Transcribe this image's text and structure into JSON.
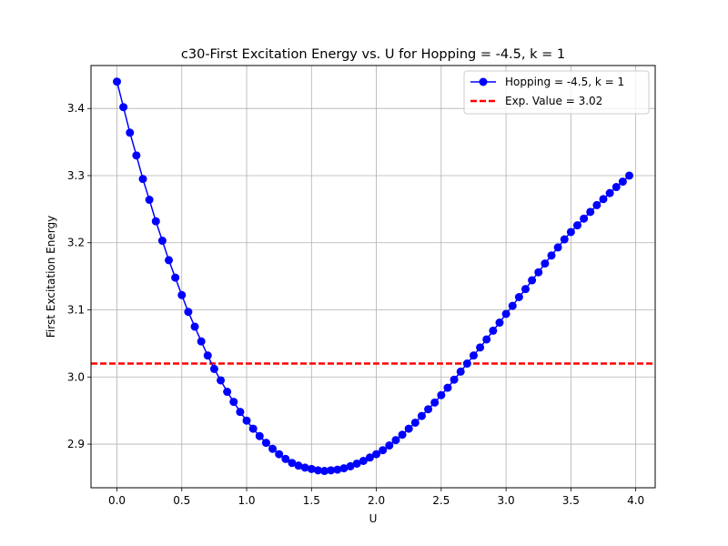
{
  "chart_data": {
    "type": "line",
    "title": "c30-First Excitation Energy vs. U for Hopping = -4.5, k = 1",
    "xlabel": "U",
    "ylabel": "First Excitation Energy",
    "xlim": [
      -0.2,
      4.15
    ],
    "ylim": [
      2.835,
      3.464
    ],
    "xticks": [
      0.0,
      0.5,
      1.0,
      1.5,
      2.0,
      2.5,
      3.0,
      3.5,
      4.0
    ],
    "xtick_labels": [
      "0.0",
      "0.5",
      "1.0",
      "1.5",
      "2.0",
      "2.5",
      "3.0",
      "3.5",
      "4.0"
    ],
    "yticks": [
      2.9,
      3.0,
      3.1,
      3.2,
      3.3,
      3.4
    ],
    "ytick_labels": [
      "2.9",
      "3.0",
      "3.1",
      "3.2",
      "3.3",
      "3.4"
    ],
    "grid": true,
    "legend_position": "top-right",
    "series": [
      {
        "name": "Hopping = -4.5, k = 1",
        "color": "#0000ff",
        "marker": "circle",
        "x": [
          0.0,
          0.05,
          0.1,
          0.15,
          0.2,
          0.25,
          0.3,
          0.35,
          0.4,
          0.45,
          0.5,
          0.55,
          0.6,
          0.65,
          0.7,
          0.75,
          0.8,
          0.85,
          0.9,
          0.95,
          1.0,
          1.05,
          1.1,
          1.15,
          1.2,
          1.25,
          1.3,
          1.35,
          1.4,
          1.45,
          1.5,
          1.55,
          1.6,
          1.65,
          1.7,
          1.75,
          1.8,
          1.85,
          1.9,
          1.95,
          2.0,
          2.05,
          2.1,
          2.15,
          2.2,
          2.25,
          2.3,
          2.35,
          2.4,
          2.45,
          2.5,
          2.55,
          2.6,
          2.65,
          2.7,
          2.75,
          2.8,
          2.85,
          2.9,
          2.95,
          3.0,
          3.05,
          3.1,
          3.15,
          3.2,
          3.25,
          3.3,
          3.35,
          3.4,
          3.45,
          3.5,
          3.55,
          3.6,
          3.65,
          3.7,
          3.75,
          3.8,
          3.85,
          3.9,
          3.95
        ],
        "y": [
          3.44,
          3.402,
          3.364,
          3.33,
          3.295,
          3.264,
          3.232,
          3.203,
          3.174,
          3.148,
          3.122,
          3.097,
          3.075,
          3.053,
          3.032,
          3.012,
          2.995,
          2.978,
          2.963,
          2.948,
          2.935,
          2.923,
          2.912,
          2.902,
          2.893,
          2.885,
          2.878,
          2.872,
          2.868,
          2.865,
          2.863,
          2.861,
          2.86,
          2.861,
          2.862,
          2.864,
          2.867,
          2.871,
          2.875,
          2.88,
          2.885,
          2.891,
          2.898,
          2.906,
          2.914,
          2.923,
          2.932,
          2.942,
          2.952,
          2.962,
          2.973,
          2.984,
          2.996,
          3.008,
          3.02,
          3.032,
          3.044,
          3.056,
          3.069,
          3.081,
          3.094,
          3.106,
          3.119,
          3.131,
          3.144,
          3.156,
          3.169,
          3.181,
          3.193,
          3.205,
          3.216,
          3.226,
          3.236,
          3.246,
          3.256,
          3.265,
          3.274,
          3.283,
          3.291,
          3.3
        ]
      }
    ],
    "reference_line": {
      "name": "Exp. Value = 3.02",
      "value": 3.02,
      "color": "#ff0000",
      "style": "dashed"
    }
  }
}
